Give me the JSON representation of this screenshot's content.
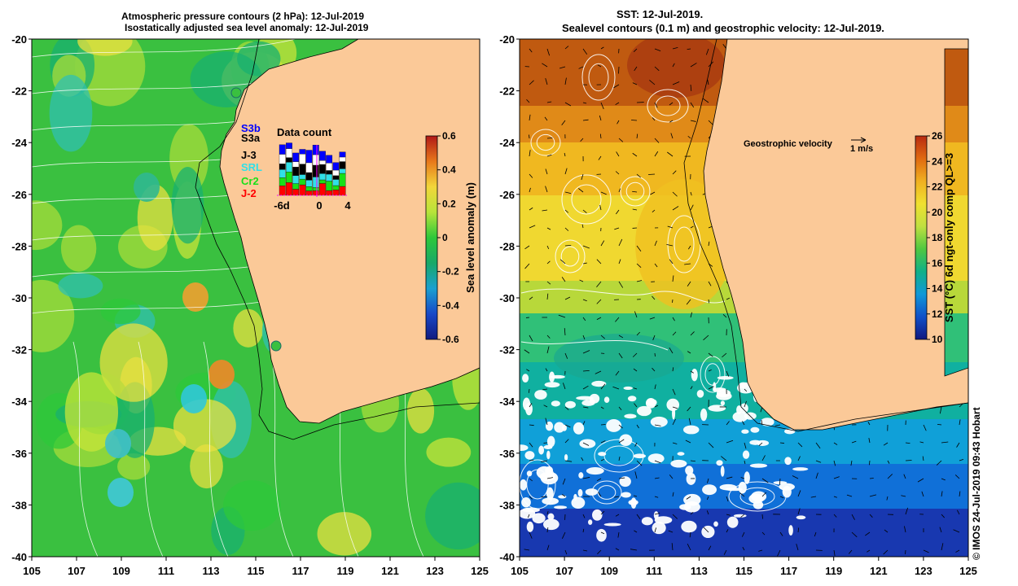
{
  "left_panel": {
    "title_line1": "Atmospheric pressure contours (2 hPa): 12-Jul-2019",
    "title_line2": "Isostatically adjusted sea level anomaly: 12-Jul-2019",
    "colorbar": {
      "label": "Sea level anomaly (m)",
      "ticks": [
        "0.6",
        "0.4",
        "0.2",
        "0",
        "-0.2",
        "-0.4",
        "-0.6"
      ],
      "colors": [
        "#b01818",
        "#e8781a",
        "#f2d63a",
        "#b8e43a",
        "#2ec83a",
        "#18a868",
        "#1aa0d0",
        "#1848c8",
        "#101a80"
      ]
    },
    "data_count": {
      "title": "Data count",
      "missions": [
        {
          "name": "S3b",
          "color": "#0000ff"
        },
        {
          "name": "S3a",
          "color": "#000000"
        },
        {
          "name": "J-3",
          "color": "#000000"
        },
        {
          "name": "SRL",
          "color": "#30e0e8"
        },
        {
          "name": "Cr2",
          "color": "#18e018"
        },
        {
          "name": "J-2",
          "color": "#ff0000"
        }
      ],
      "x_ticks": [
        "-6d",
        "0",
        "4"
      ]
    }
  },
  "right_panel": {
    "title_line1": "SST: 12-Jul-2019.",
    "title_line2": "Sealevel contours (0.1 m) and geostrophic velocity: 12-Jul-2019.",
    "velocity_key": {
      "label": "Geostrophic velocity",
      "scale": "1 m/s"
    },
    "colorbar": {
      "label": "SST (°C) 6d ngt-only comp QL>=3",
      "ticks": [
        "26",
        "24",
        "22",
        "20",
        "18",
        "16",
        "14",
        "12",
        "10"
      ],
      "colors": [
        "#b82a10",
        "#e06a10",
        "#f0b020",
        "#f0e030",
        "#c0e040",
        "#50c840",
        "#10b088",
        "#1098d8",
        "#1050c8",
        "#101880"
      ]
    }
  },
  "map_axes": {
    "lat_ticks": [
      "-20",
      "-22",
      "-24",
      "-26",
      "-28",
      "-30",
      "-32",
      "-34",
      "-36",
      "-38",
      "-40"
    ],
    "lon_ticks": [
      "105",
      "107",
      "109",
      "111",
      "113",
      "115",
      "117",
      "119",
      "121",
      "123",
      "125"
    ]
  },
  "colors": {
    "land": "#fbc998",
    "coast": "#000000",
    "contour": "#ffffff"
  },
  "credit": "© IMOS 24-Jul-2019 09:43 Hobart"
}
